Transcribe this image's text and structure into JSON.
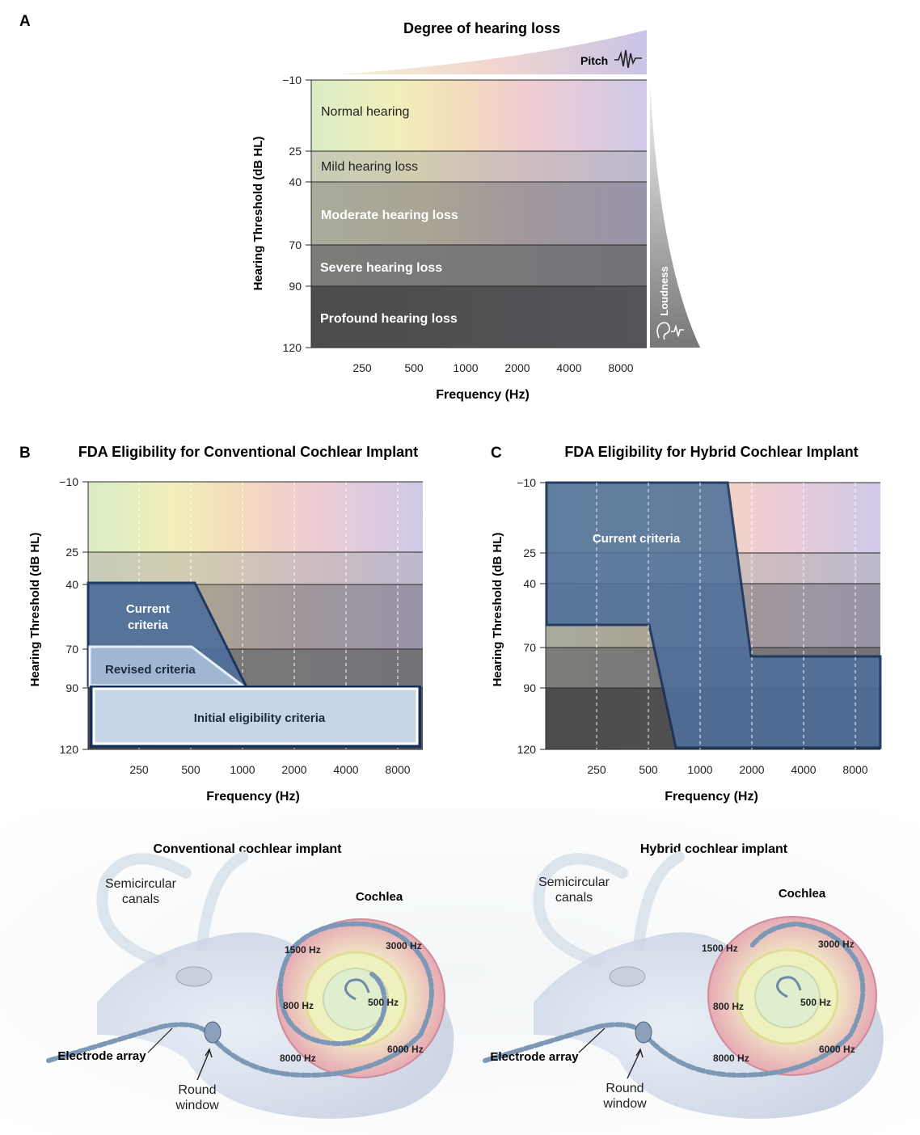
{
  "panel_a": {
    "letter": "A",
    "title": "Degree of hearing loss",
    "pitch_label": "Pitch",
    "loudness_label": "Loudness",
    "ylabel": "Hearing Threshold (dB HL)",
    "xlabel": "Frequency (Hz)",
    "y_ticks": [
      "−10",
      "25",
      "40",
      "70",
      "90",
      "120"
    ],
    "x_ticks": [
      "250",
      "500",
      "1000",
      "2000",
      "4000",
      "8000"
    ],
    "bands": [
      {
        "label": "Normal hearing",
        "from": -10,
        "to": 25
      },
      {
        "label": "Mild hearing loss",
        "from": 25,
        "to": 40
      },
      {
        "label": "Moderate hearing loss",
        "from": 40,
        "to": 70
      },
      {
        "label": "Severe hearing loss",
        "from": 70,
        "to": 90
      },
      {
        "label": "Profound hearing loss",
        "from": 90,
        "to": 120
      }
    ]
  },
  "panel_b": {
    "letter": "B",
    "title": "FDA Eligibility for Conventional Cochlear Implant",
    "ylabel": "Hearing Threshold (dB HL)",
    "xlabel": "Frequency (Hz)",
    "y_ticks": [
      "−10",
      "25",
      "40",
      "70",
      "90",
      "120"
    ],
    "x_ticks": [
      "250",
      "500",
      "1000",
      "2000",
      "4000",
      "8000"
    ],
    "regions": {
      "current": "Current criteria",
      "revised": "Revised criteria",
      "initial": "Initial eligibility criteria"
    }
  },
  "panel_c": {
    "letter": "C",
    "title": "FDA Eligibility for Hybrid Cochlear Implant",
    "ylabel": "Hearing Threshold (dB HL)",
    "xlabel": "Frequency (Hz)",
    "y_ticks": [
      "−10",
      "25",
      "40",
      "70",
      "90",
      "120"
    ],
    "x_ticks": [
      "250",
      "500",
      "1000",
      "2000",
      "4000",
      "8000"
    ],
    "regions": {
      "current": "Current criteria"
    }
  },
  "anatomy_left": {
    "title": "Conventional cochlear implant",
    "semicircular": "Semicircular canals",
    "cochlea": "Cochlea",
    "electrode": "Electrode array",
    "round_window": "Round window",
    "freqs": [
      "1500 Hz",
      "3000 Hz",
      "800 Hz",
      "500 Hz",
      "8000 Hz",
      "6000 Hz"
    ]
  },
  "anatomy_right": {
    "title": "Hybrid cochlear implant",
    "semicircular": "Semicircular canals",
    "cochlea": "Cochlea",
    "electrode": "Electrode array",
    "round_window": "Round window",
    "freqs": [
      "1500 Hz",
      "3000 Hz",
      "800 Hz",
      "500 Hz",
      "8000 Hz",
      "6000 Hz"
    ]
  },
  "colors": {
    "criteria_dark": "#4f6f9b",
    "criteria_outline": "#16305c",
    "revised": "#9fb7d3",
    "initial": "#c6d6e6",
    "cochlea_pink": "#e9aeb6",
    "cochlea_yellow": "#ecebb0"
  }
}
